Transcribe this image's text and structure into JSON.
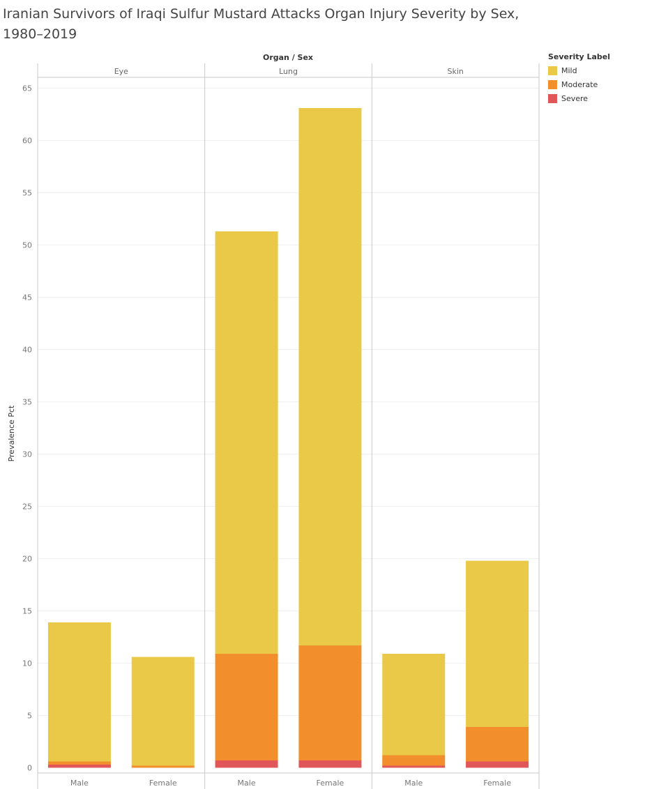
{
  "title": "Iranian Survivors of Iraqi Sulfur Mustard Attacks Organ Injury Severity by Sex, 1980–2019",
  "chart_data": {
    "type": "bar",
    "stacked": true,
    "header_label": "Organ / Sex",
    "ylabel": "Prevalence Pct",
    "ylim": [
      0,
      65
    ],
    "yticks": [
      0,
      5,
      10,
      15,
      20,
      25,
      30,
      35,
      40,
      45,
      50,
      55,
      60,
      65
    ],
    "grid": true,
    "legend_placement": "top-right",
    "legend_title": "Severity Label",
    "groups": [
      "Eye",
      "Lung",
      "Skin"
    ],
    "categories": [
      "Male",
      "Female"
    ],
    "series": [
      {
        "name": "Severe",
        "color": "#e15759",
        "values": {
          "Eye": [
            0.3,
            0.0
          ],
          "Lung": [
            0.7,
            0.7
          ],
          "Skin": [
            0.2,
            0.6
          ]
        }
      },
      {
        "name": "Moderate",
        "color": "#f28e2b",
        "values": {
          "Eye": [
            0.3,
            0.2
          ],
          "Lung": [
            10.2,
            11.0
          ],
          "Skin": [
            1.0,
            3.3
          ]
        }
      },
      {
        "name": "Mild",
        "color": "#ebc948",
        "values": {
          "Eye": [
            13.3,
            10.4
          ],
          "Lung": [
            40.4,
            51.4
          ],
          "Skin": [
            9.7,
            15.9
          ]
        }
      }
    ],
    "legend_order": [
      "Mild",
      "Moderate",
      "Severe"
    ]
  }
}
